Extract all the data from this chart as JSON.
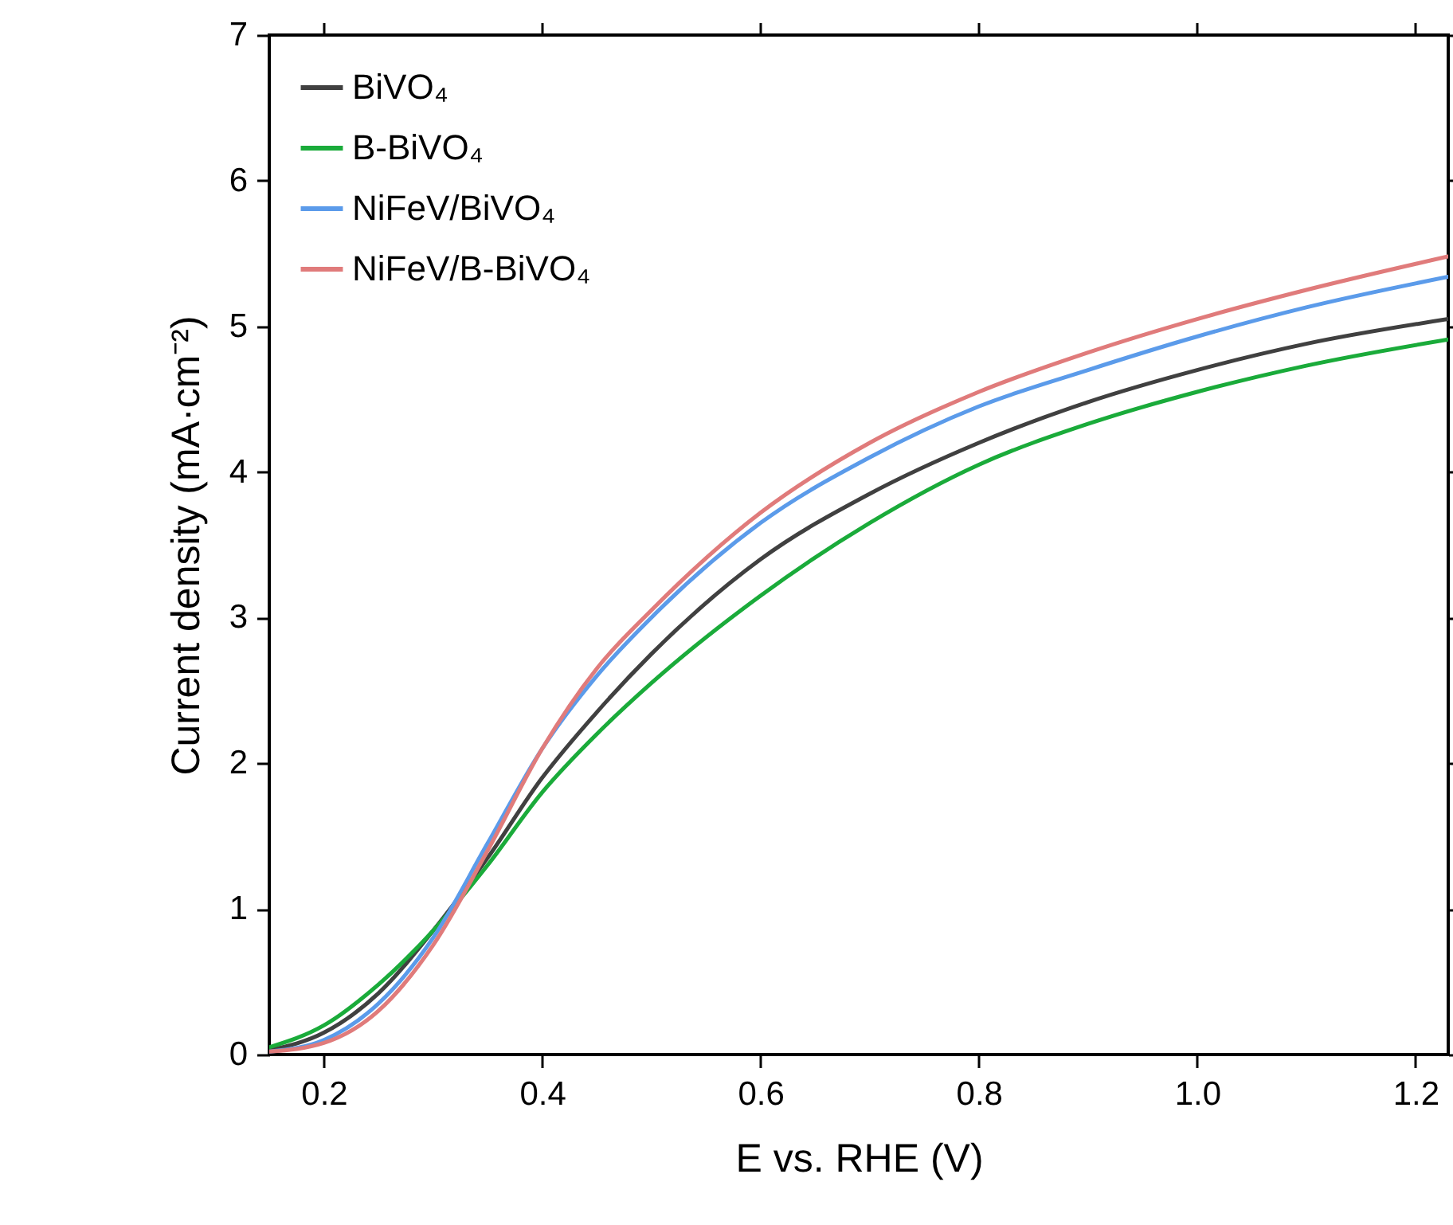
{
  "chart_data": {
    "type": "line",
    "xlabel": "E vs. RHE (V)",
    "ylabel": "Current density (mA·cm⁻²)",
    "xlim": [
      0.15,
      1.23
    ],
    "ylim": [
      0,
      7
    ],
    "xticks": [
      {
        "value": 0.2,
        "label": "0.2"
      },
      {
        "value": 0.4,
        "label": "0.4"
      },
      {
        "value": 0.6,
        "label": "0.6"
      },
      {
        "value": 0.8,
        "label": "0.8"
      },
      {
        "value": 1.0,
        "label": "1.0"
      },
      {
        "value": 1.2,
        "label": "1.2"
      }
    ],
    "yticks": [
      0,
      1,
      2,
      3,
      4,
      5,
      6,
      7
    ],
    "legend": "top left",
    "grid": false,
    "x": [
      0.15,
      0.2,
      0.25,
      0.3,
      0.35,
      0.4,
      0.45,
      0.5,
      0.6,
      0.7,
      0.8,
      0.9,
      1.0,
      1.1,
      1.23
    ],
    "series": [
      {
        "name": "BiVO₄",
        "color": "#404040",
        "values": [
          0.03,
          0.15,
          0.42,
          0.85,
          1.35,
          1.9,
          2.35,
          2.75,
          3.4,
          3.85,
          4.2,
          4.48,
          4.7,
          4.88,
          5.05
        ]
      },
      {
        "name": "B-BiVO₄",
        "color": "#1aab3a",
        "values": [
          0.05,
          0.2,
          0.48,
          0.85,
          1.3,
          1.8,
          2.2,
          2.55,
          3.15,
          3.65,
          4.05,
          4.33,
          4.55,
          4.73,
          4.91
        ]
      },
      {
        "name": "NiFeV/BiVO₄",
        "color": "#5b9bea",
        "values": [
          0.02,
          0.1,
          0.35,
          0.8,
          1.45,
          2.1,
          2.6,
          3.0,
          3.65,
          4.1,
          4.45,
          4.7,
          4.93,
          5.13,
          5.34
        ]
      },
      {
        "name": "NiFeV/B-BiVO₄",
        "color": "#e07b7b",
        "values": [
          0.02,
          0.08,
          0.3,
          0.75,
          1.4,
          2.1,
          2.65,
          3.05,
          3.72,
          4.2,
          4.55,
          4.82,
          5.05,
          5.25,
          5.48
        ]
      }
    ]
  }
}
